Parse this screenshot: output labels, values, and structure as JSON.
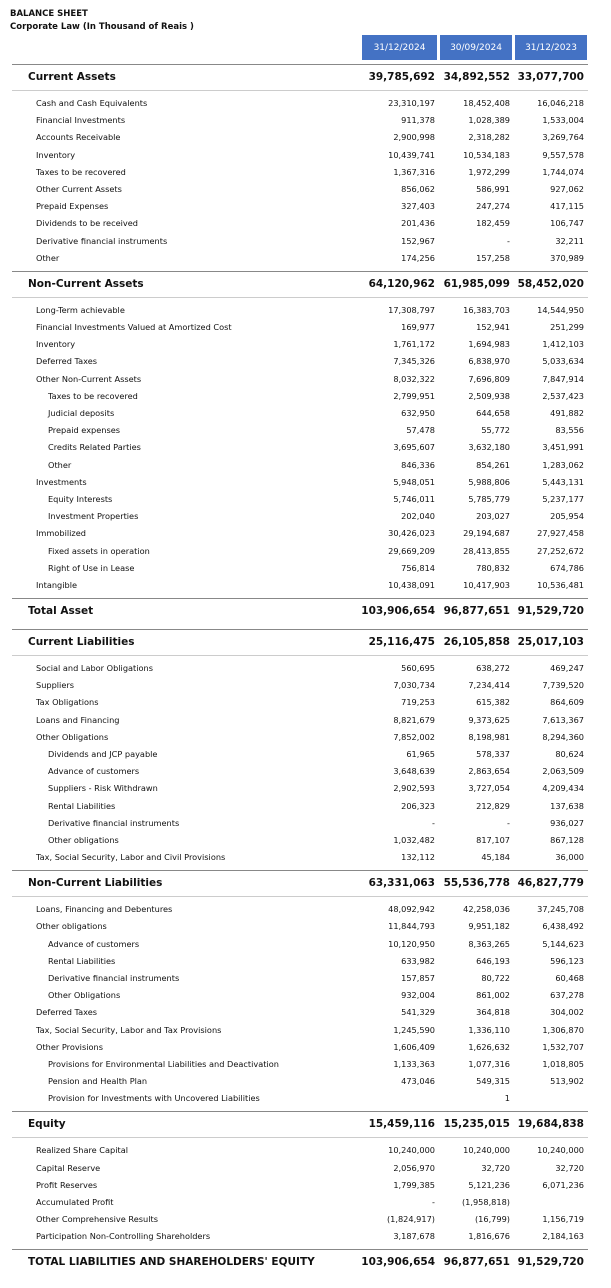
{
  "header": {
    "title": "BALANCE SHEET",
    "subtitle": "Corporate Law (In Thousand of Reais )"
  },
  "table": {
    "columns": [
      "31/12/2024",
      "30/09/2024",
      "31/12/2023"
    ],
    "groups": [
      {
        "title": "Current Assets",
        "values": [
          "39,785,692",
          "34,892,552",
          "33,077,700"
        ],
        "rows": [
          {
            "label": "Cash and Cash Equivalents",
            "values": [
              "23,310,197",
              "18,452,408",
              "16,046,218"
            ]
          },
          {
            "label": "Financial Investments",
            "values": [
              "911,378",
              "1,028,389",
              "1,533,004"
            ]
          },
          {
            "label": "Accounts Receivable",
            "values": [
              "2,900,998",
              "2,318,282",
              "3,269,764"
            ]
          },
          {
            "label": "Inventory",
            "values": [
              "10,439,741",
              "10,534,183",
              "9,557,578"
            ]
          },
          {
            "label": "Taxes to be recovered",
            "values": [
              "1,367,316",
              "1,972,299",
              "1,744,074"
            ]
          },
          {
            "label": "Other Current Assets",
            "values": [
              "856,062",
              "586,991",
              "927,062"
            ]
          },
          {
            "label": "Prepaid Expenses",
            "values": [
              "327,403",
              "247,274",
              "417,115"
            ]
          },
          {
            "label": "Dividends to be received",
            "values": [
              "201,436",
              "182,459",
              "106,747"
            ]
          },
          {
            "label": "Derivative financial instruments",
            "values": [
              "152,967",
              "-",
              "32,211"
            ]
          },
          {
            "label": "Other",
            "values": [
              "174,256",
              "157,258",
              "370,989"
            ]
          }
        ]
      },
      {
        "title": "Non-Current Assets",
        "values": [
          "64,120,962",
          "61,985,099",
          "58,452,020"
        ],
        "rows": [
          {
            "label": "Long-Term achievable",
            "values": [
              "17,308,797",
              "16,383,703",
              "14,544,950"
            ]
          },
          {
            "label": "Financial Investments Valued at Amortized Cost",
            "values": [
              "169,977",
              "152,941",
              "251,299"
            ]
          },
          {
            "label": "Inventory",
            "values": [
              "1,761,172",
              "1,694,983",
              "1,412,103"
            ]
          },
          {
            "label": "Deferred Taxes",
            "values": [
              "7,345,326",
              "6,838,970",
              "5,033,634"
            ]
          },
          {
            "label": "Other Non-Current Assets",
            "values": [
              "8,032,322",
              "7,696,809",
              "7,847,914"
            ]
          },
          {
            "label": "Taxes to be recovered",
            "values": [
              "2,799,951",
              "2,509,938",
              "2,537,423"
            ],
            "indent": 1
          },
          {
            "label": "Judicial deposits",
            "values": [
              "632,950",
              "644,658",
              "491,882"
            ],
            "indent": 1
          },
          {
            "label": "Prepaid expenses",
            "values": [
              "57,478",
              "55,772",
              "83,556"
            ],
            "indent": 1
          },
          {
            "label": "Credits Related Parties",
            "values": [
              "3,695,607",
              "3,632,180",
              "3,451,991"
            ],
            "indent": 1
          },
          {
            "label": "Other",
            "values": [
              "846,336",
              "854,261",
              "1,283,062"
            ],
            "indent": 1
          },
          {
            "label": "Investments",
            "values": [
              "5,948,051",
              "5,988,806",
              "5,443,131"
            ]
          },
          {
            "label": "Equity Interests",
            "values": [
              "5,746,011",
              "5,785,779",
              "5,237,177"
            ],
            "indent": 1
          },
          {
            "label": "Investment Properties",
            "values": [
              "202,040",
              "203,027",
              "205,954"
            ],
            "indent": 1
          },
          {
            "label": "Immobilized",
            "values": [
              "30,426,023",
              "29,194,687",
              "27,927,458"
            ]
          },
          {
            "label": "Fixed assets in operation",
            "values": [
              "29,669,209",
              "28,413,855",
              "27,252,672"
            ],
            "indent": 1
          },
          {
            "label": "Right of Use in Lease",
            "values": [
              "756,814",
              "780,832",
              "674,786"
            ],
            "indent": 1
          },
          {
            "label": "Intangible",
            "values": [
              "10,438,091",
              "10,417,903",
              "10,536,481"
            ]
          }
        ]
      },
      {
        "title": "Total Asset",
        "values": [
          "103,906,654",
          "96,877,651",
          "91,529,720"
        ]
      },
      {
        "title": "Current Liabilities",
        "values": [
          "25,116,475",
          "26,105,858",
          "25,017,103"
        ],
        "rows": [
          {
            "label": "Social and Labor Obligations",
            "values": [
              "560,695",
              "638,272",
              "469,247"
            ]
          },
          {
            "label": "Suppliers",
            "values": [
              "7,030,734",
              "7,234,414",
              "7,739,520"
            ]
          },
          {
            "label": "Tax Obligations",
            "values": [
              "719,253",
              "615,382",
              "864,609"
            ]
          },
          {
            "label": "Loans and Financing",
            "values": [
              "8,821,679",
              "9,373,625",
              "7,613,367"
            ]
          },
          {
            "label": "Other Obligations",
            "values": [
              "7,852,002",
              "8,198,981",
              "8,294,360"
            ]
          },
          {
            "label": "Dividends and JCP payable",
            "values": [
              "61,965",
              "578,337",
              "80,624"
            ],
            "indent": 1
          },
          {
            "label": "Advance of customers",
            "values": [
              "3,648,639",
              "2,863,654",
              "2,063,509"
            ],
            "indent": 1
          },
          {
            "label": "Suppliers - Risk Withdrawn",
            "values": [
              "2,902,593",
              "3,727,054",
              "4,209,434"
            ],
            "indent": 1
          },
          {
            "label": "Rental Liabilities",
            "values": [
              "206,323",
              "212,829",
              "137,638"
            ],
            "indent": 1
          },
          {
            "label": "Derivative financial instruments",
            "values": [
              "-",
              "-",
              "936,027"
            ],
            "indent": 1
          },
          {
            "label": "Other obligations",
            "values": [
              "1,032,482",
              "817,107",
              "867,128"
            ],
            "indent": 1
          },
          {
            "label": "Tax, Social Security, Labor and Civil Provisions",
            "values": [
              "132,112",
              "45,184",
              "36,000"
            ]
          }
        ]
      },
      {
        "title": "Non-Current Liabilities",
        "values": [
          "63,331,063",
          "55,536,778",
          "46,827,779"
        ],
        "rows": [
          {
            "label": "Loans, Financing and Debentures",
            "values": [
              "48,092,942",
              "42,258,036",
              "37,245,708"
            ]
          },
          {
            "label": "Other obligations",
            "values": [
              "11,844,793",
              "9,951,182",
              "6,438,492"
            ]
          },
          {
            "label": "Advance of customers",
            "values": [
              "10,120,950",
              "8,363,265",
              "5,144,623"
            ],
            "indent": 1
          },
          {
            "label": "Rental Liabilities",
            "values": [
              "633,982",
              "646,193",
              "596,123"
            ],
            "indent": 1
          },
          {
            "label": "Derivative financial instruments",
            "values": [
              "157,857",
              "80,722",
              "60,468"
            ],
            "indent": 1
          },
          {
            "label": "Other Obligations",
            "values": [
              "932,004",
              "861,002",
              "637,278"
            ],
            "indent": 1
          },
          {
            "label": "Deferred Taxes",
            "values": [
              "541,329",
              "364,818",
              "304,002"
            ]
          },
          {
            "label": "Tax, Social Security, Labor and Tax Provisions",
            "values": [
              "1,245,590",
              "1,336,110",
              "1,306,870"
            ]
          },
          {
            "label": "Other Provisions",
            "values": [
              "1,606,409",
              "1,626,632",
              "1,532,707"
            ]
          },
          {
            "label": "Provisions for Environmental Liabilities and Deactivation",
            "values": [
              "1,133,363",
              "1,077,316",
              "1,018,805"
            ],
            "indent": 1
          },
          {
            "label": "Pension and Health Plan",
            "values": [
              "473,046",
              "549,315",
              "513,902"
            ],
            "indent": 1
          },
          {
            "label": "Provision for Investments with Uncovered Liabilities",
            "values": [
              null,
              "1",
              null
            ],
            "indent": 1
          }
        ]
      },
      {
        "title": "Equity",
        "values": [
          "15,459,116",
          "15,235,015",
          "19,684,838"
        ],
        "rows": [
          {
            "label": "Realized Share Capital",
            "values": [
              "10,240,000",
              "10,240,000",
              "10,240,000"
            ]
          },
          {
            "label": "Capital Reserve",
            "values": [
              "2,056,970",
              "32,720",
              "32,720"
            ]
          },
          {
            "label": "Profit Reserves",
            "values": [
              "1,799,385",
              "5,121,236",
              "6,071,236"
            ]
          },
          {
            "label": "Accumulated Profit",
            "values": [
              "-",
              "(1,958,818)",
              null
            ]
          },
          {
            "label": "Other Comprehensive Results",
            "values": [
              "(1,824,917)",
              "(16,799)",
              "1,156,719"
            ]
          },
          {
            "label": "Participation Non-Controlling Shareholders",
            "values": [
              "3,187,678",
              "1,816,676",
              "2,184,163"
            ]
          }
        ]
      },
      {
        "title": "TOTAL LIABILITIES AND SHAREHOLDERS' EQUITY",
        "values": [
          "103,906,654",
          "96,877,651",
          "91,529,720"
        ]
      }
    ]
  }
}
